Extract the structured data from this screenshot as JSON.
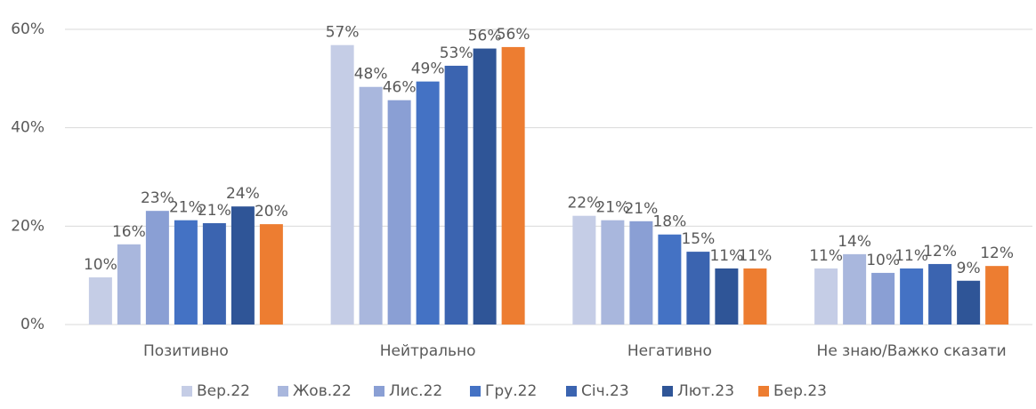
{
  "chart_data": {
    "type": "bar",
    "categories": [
      "Позитивно",
      "Нейтрально",
      "Негативно",
      "Не знаю/Важко сказати"
    ],
    "series": [
      {
        "name": "Вер.22",
        "color": "#c5cde6",
        "values": [
          9.6,
          56.8,
          22.1,
          11.4
        ],
        "value_labels": [
          "10%",
          "57%",
          "22%",
          "11%"
        ]
      },
      {
        "name": "Жов.22",
        "color": "#a9b7dd",
        "values": [
          16.3,
          48.3,
          21.2,
          14.3
        ],
        "value_labels": [
          "16%",
          "48%",
          "21%",
          "14%"
        ]
      },
      {
        "name": "Лис.22",
        "color": "#8a9fd4",
        "values": [
          23.1,
          45.6,
          21.0,
          10.5
        ],
        "value_labels": [
          "23%",
          "46%",
          "21%",
          "10%"
        ]
      },
      {
        "name": "Гру.22",
        "color": "#4472c4",
        "values": [
          21.2,
          49.4,
          18.3,
          11.4
        ],
        "value_labels": [
          "21%",
          "49%",
          "18%",
          "11%"
        ]
      },
      {
        "name": "Січ.23",
        "color": "#3b64b0",
        "values": [
          20.6,
          52.6,
          14.8,
          12.3
        ],
        "value_labels": [
          "21%",
          "53%",
          "15%",
          "12%"
        ]
      },
      {
        "name": "Лют.23",
        "color": "#2f5597",
        "values": [
          24.0,
          56.1,
          11.4,
          8.9
        ],
        "value_labels": [
          "24%",
          "56%",
          "11%",
          "9%"
        ]
      },
      {
        "name": "Бер.23",
        "color": "#ed7d31",
        "values": [
          20.4,
          56.4,
          11.4,
          11.9
        ],
        "value_labels": [
          "20%",
          "56%",
          "11%",
          "12%"
        ]
      }
    ],
    "ylim": [
      0,
      60
    ],
    "yticks": [
      {
        "value": 0,
        "label": "0%"
      },
      {
        "value": 20,
        "label": "20%"
      },
      {
        "value": 40,
        "label": "40%"
      },
      {
        "value": 60,
        "label": "60%"
      }
    ],
    "grid": true,
    "legend": "bottom"
  }
}
